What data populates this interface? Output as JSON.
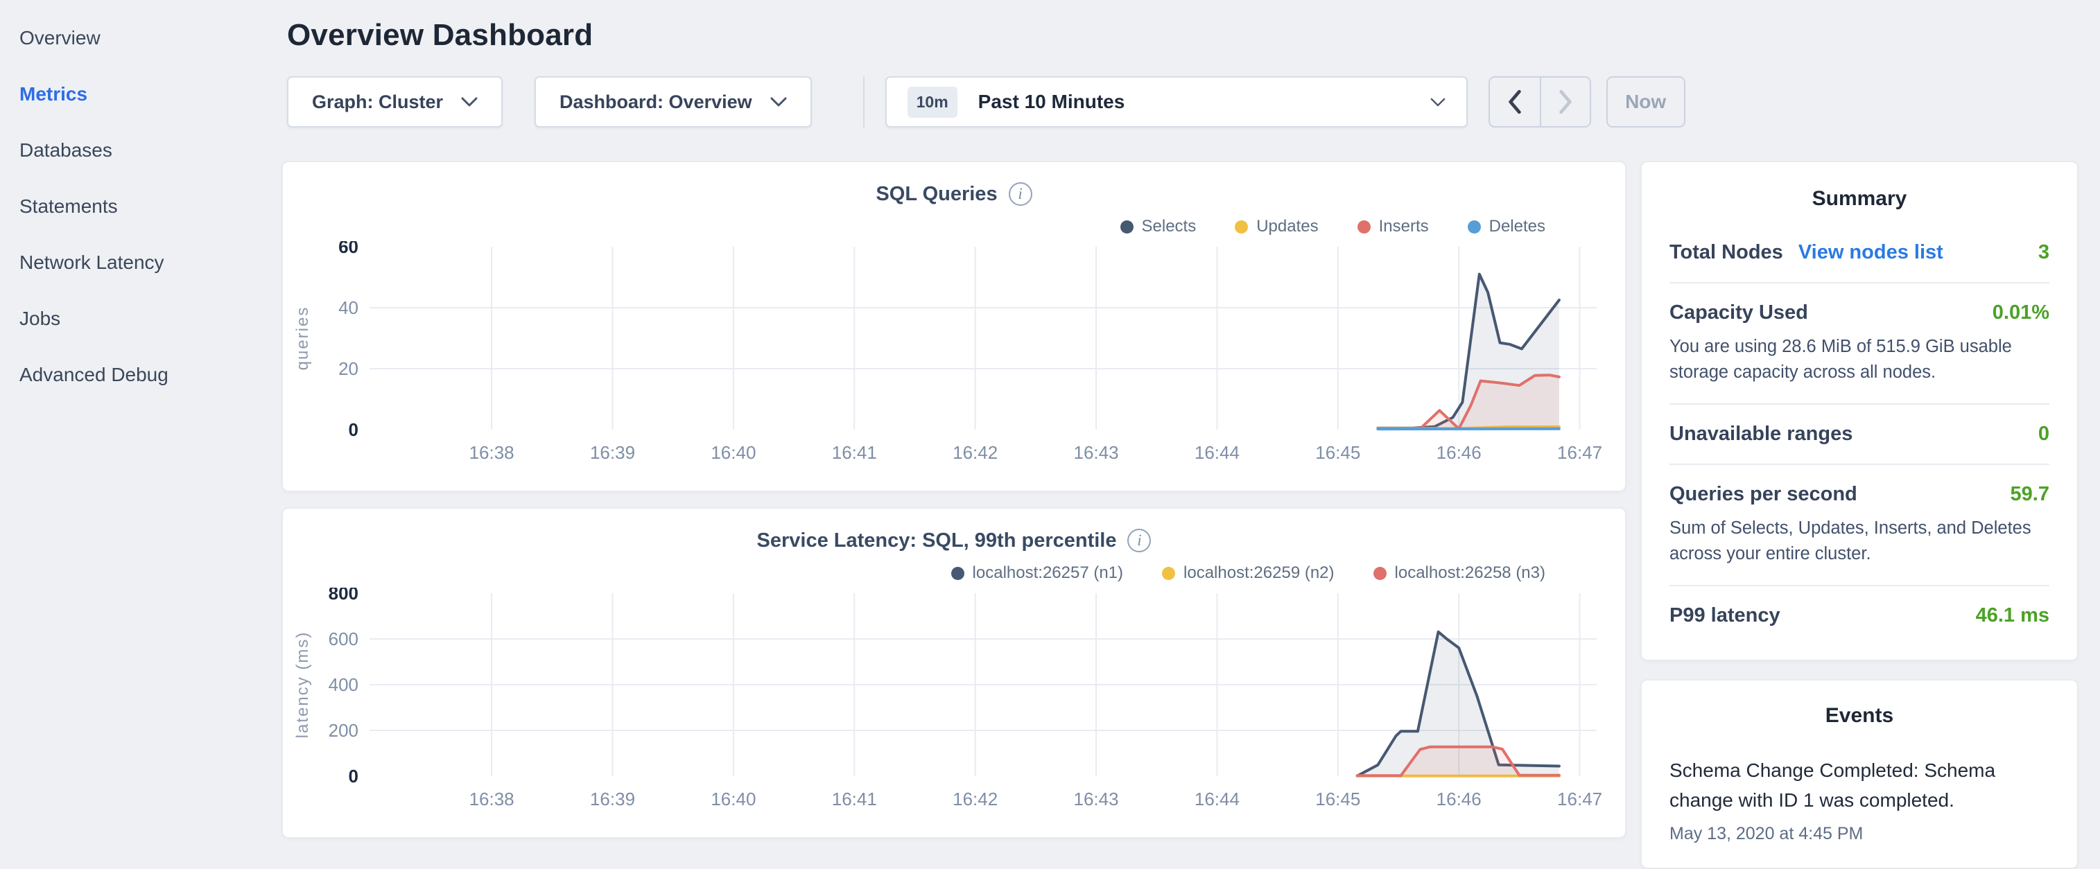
{
  "colors": {
    "accent_blue": "#2e6ce6",
    "link_blue": "#2a7ae2",
    "value_green": "#4ba226"
  },
  "sidebar": {
    "items": [
      {
        "label": "Overview"
      },
      {
        "label": "Metrics"
      },
      {
        "label": "Databases"
      },
      {
        "label": "Statements"
      },
      {
        "label": "Network Latency"
      },
      {
        "label": "Jobs"
      },
      {
        "label": "Advanced Debug"
      }
    ]
  },
  "header": {
    "title": "Overview Dashboard"
  },
  "controls": {
    "graph_label": "Graph: Cluster",
    "dashboard_label": "Dashboard: Overview",
    "time_badge": "10m",
    "time_label": "Past 10 Minutes",
    "now_label": "Now"
  },
  "chart_data": [
    {
      "type": "area",
      "title": "SQL Queries",
      "ylabel": "queries",
      "xlim": [
        36.99,
        47.14
      ],
      "ylim": [
        0,
        60
      ],
      "y_ticks": [
        0,
        20,
        40,
        60
      ],
      "x_ticks": [
        {
          "t": 38,
          "label": "16:38"
        },
        {
          "t": 39,
          "label": "16:39"
        },
        {
          "t": 40,
          "label": "16:40"
        },
        {
          "t": 41,
          "label": "16:41"
        },
        {
          "t": 42,
          "label": "16:42"
        },
        {
          "t": 43,
          "label": "16:43"
        },
        {
          "t": 44,
          "label": "16:44"
        },
        {
          "t": 45,
          "label": "16:45"
        },
        {
          "t": 46,
          "label": "16:46"
        },
        {
          "t": 47,
          "label": "16:47"
        }
      ],
      "legend_position": "top-right",
      "grid": true,
      "series": [
        {
          "name": "Selects",
          "color": "#475872",
          "fill": "rgba(71,88,114,0.10)",
          "points": [
            [
              45.33,
              0.5
            ],
            [
              45.62,
              0.5
            ],
            [
              45.8,
              1
            ],
            [
              45.95,
              4
            ],
            [
              46.03,
              9
            ],
            [
              46.1,
              30
            ],
            [
              46.17,
              51
            ],
            [
              46.24,
              45
            ],
            [
              46.34,
              28.5
            ],
            [
              46.42,
              28
            ],
            [
              46.52,
              26.5
            ],
            [
              46.83,
              42.5
            ]
          ]
        },
        {
          "name": "Updates",
          "color": "#f0c043",
          "fill": "rgba(240,192,67,0.10)",
          "points": [
            [
              45.33,
              0.4
            ],
            [
              46.0,
              0.4
            ],
            [
              46.4,
              0.9
            ],
            [
              46.83,
              0.9
            ]
          ]
        },
        {
          "name": "Inserts",
          "color": "#e0706a",
          "fill": "rgba(224,112,106,0.12)",
          "points": [
            [
              45.33,
              0.3
            ],
            [
              45.68,
              0.3
            ],
            [
              45.84,
              6.3
            ],
            [
              46.0,
              0.3
            ],
            [
              46.1,
              8
            ],
            [
              46.18,
              16
            ],
            [
              46.35,
              15.3
            ],
            [
              46.5,
              14.5
            ],
            [
              46.63,
              17.8
            ],
            [
              46.75,
              17.9
            ],
            [
              46.83,
              17.3
            ]
          ]
        },
        {
          "name": "Deletes",
          "color": "#569ed5",
          "fill": "rgba(86,158,213,0.10)",
          "points": [
            [
              45.33,
              0.2
            ],
            [
              46.83,
              0.3
            ]
          ]
        }
      ]
    },
    {
      "type": "area",
      "title": "Service Latency: SQL, 99th percentile",
      "ylabel": "latency (ms)",
      "xlim": [
        36.99,
        47.14
      ],
      "ylim": [
        0,
        800
      ],
      "y_ticks": [
        0,
        200,
        400,
        600,
        800
      ],
      "x_ticks": [
        {
          "t": 38,
          "label": "16:38"
        },
        {
          "t": 39,
          "label": "16:39"
        },
        {
          "t": 40,
          "label": "16:40"
        },
        {
          "t": 41,
          "label": "16:41"
        },
        {
          "t": 42,
          "label": "16:42"
        },
        {
          "t": 43,
          "label": "16:43"
        },
        {
          "t": 44,
          "label": "16:44"
        },
        {
          "t": 45,
          "label": "16:45"
        },
        {
          "t": 46,
          "label": "16:46"
        },
        {
          "t": 47,
          "label": "16:47"
        }
      ],
      "legend_position": "top-right",
      "grid": true,
      "series": [
        {
          "name": "localhost:26257 (n1)",
          "color": "#475872",
          "fill": "rgba(71,88,114,0.10)",
          "points": [
            [
              45.16,
              1
            ],
            [
              45.33,
              49
            ],
            [
              45.48,
              176
            ],
            [
              45.52,
              196
            ],
            [
              45.66,
              196
            ],
            [
              45.83,
              631
            ],
            [
              45.9,
              600
            ],
            [
              46.0,
              561
            ],
            [
              46.15,
              350
            ],
            [
              46.33,
              49
            ],
            [
              46.55,
              47
            ],
            [
              46.83,
              44
            ]
          ]
        },
        {
          "name": "localhost:26259 (n2)",
          "color": "#f0c043",
          "fill": "rgba(240,192,67,0.10)",
          "points": [
            [
              45.16,
              1
            ],
            [
              46.83,
              1
            ]
          ]
        },
        {
          "name": "localhost:26258 (n3)",
          "color": "#e0706a",
          "fill": "rgba(224,112,106,0.12)",
          "points": [
            [
              45.16,
              2
            ],
            [
              45.52,
              2
            ],
            [
              45.68,
              117
            ],
            [
              45.76,
              128
            ],
            [
              46.28,
              128
            ],
            [
              46.36,
              118
            ],
            [
              46.5,
              4
            ],
            [
              46.83,
              4
            ]
          ]
        }
      ]
    }
  ],
  "summary": {
    "title": "Summary",
    "rows": [
      {
        "label": "Total Nodes",
        "link": "View nodes list",
        "value": "3"
      },
      {
        "label": "Capacity Used",
        "value": "0.01%",
        "desc": "You are using 28.6 MiB of 515.9 GiB usable storage capacity across all nodes."
      },
      {
        "label": "Unavailable ranges",
        "value": "0"
      },
      {
        "label": "Queries per second",
        "value": "59.7",
        "desc": "Sum of Selects, Updates, Inserts, and Deletes across your entire cluster."
      },
      {
        "label": "P99 latency",
        "value": "46.1 ms"
      }
    ]
  },
  "events": {
    "title": "Events",
    "items": [
      {
        "message": "Schema Change Completed: Schema change with ID 1 was completed.",
        "timestamp": "May 13, 2020 at 4:45 PM"
      }
    ]
  }
}
